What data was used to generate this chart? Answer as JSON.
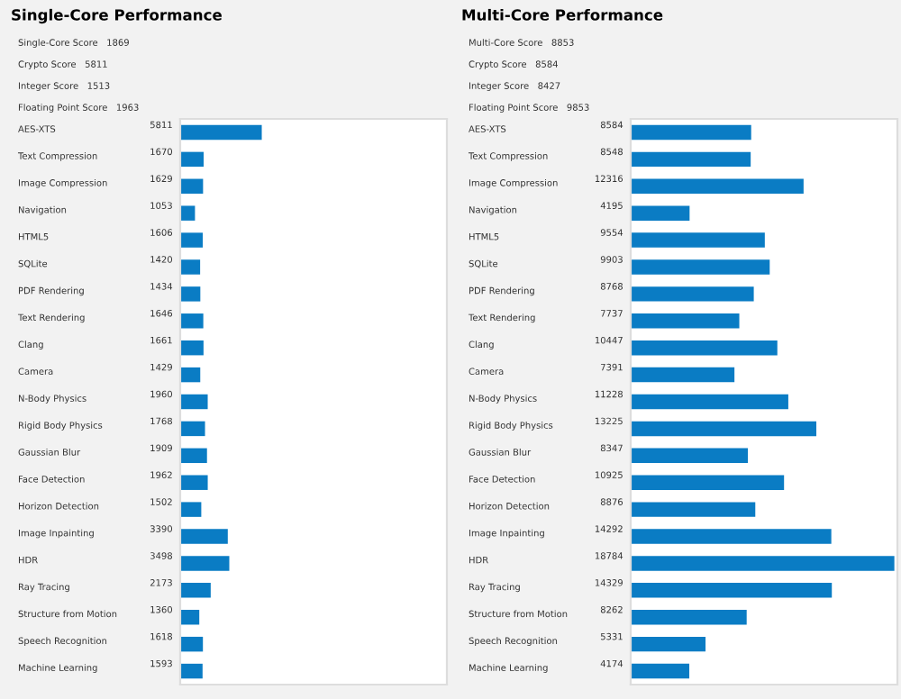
{
  "chart_data": [
    {
      "type": "bar",
      "orientation": "horizontal",
      "title": "Single-Core Performance",
      "annotations": [
        "Single-Core Score   1869",
        "Crypto Score   5811",
        "Integer Score   1513",
        "Floating Point Score   1963"
      ],
      "categories": [
        "AES-XTS",
        "Text Compression",
        "Image Compression",
        "Navigation",
        "HTML5",
        "SQLite",
        "PDF Rendering",
        "Text Rendering",
        "Clang",
        "Camera",
        "N-Body Physics",
        "Rigid Body Physics",
        "Gaussian Blur",
        "Face Detection",
        "Horizon Detection",
        "Image Inpainting",
        "HDR",
        "Ray Tracing",
        "Structure from Motion",
        "Speech Recognition",
        "Machine Learning"
      ],
      "values": [
        5811,
        1670,
        1629,
        1053,
        1606,
        1420,
        1434,
        1646,
        1661,
        1429,
        1960,
        1768,
        1909,
        1962,
        1502,
        3390,
        3498,
        2173,
        1360,
        1618,
        1593
      ],
      "color": "#0a7cc4",
      "xlim": [
        0,
        19000
      ],
      "tick_labels": "y",
      "data_labels": true,
      "grid": false,
      "legend": false
    },
    {
      "type": "bar",
      "orientation": "horizontal",
      "title": "Multi-Core Performance",
      "annotations": [
        "Multi-Core Score   8853",
        "Crypto Score   8584",
        "Integer Score   8427",
        "Floating Point Score   9853"
      ],
      "categories": [
        "AES-XTS",
        "Text Compression",
        "Image Compression",
        "Navigation",
        "HTML5",
        "SQLite",
        "PDF Rendering",
        "Text Rendering",
        "Clang",
        "Camera",
        "N-Body Physics",
        "Rigid Body Physics",
        "Gaussian Blur",
        "Face Detection",
        "Horizon Detection",
        "Image Inpainting",
        "HDR",
        "Ray Tracing",
        "Structure from Motion",
        "Speech Recognition",
        "Machine Learning"
      ],
      "values": [
        8584,
        8548,
        12316,
        4195,
        9554,
        9903,
        8768,
        7737,
        10447,
        7391,
        11228,
        13225,
        8347,
        10925,
        8876,
        14292,
        18784,
        14329,
        8262,
        5331,
        4174
      ],
      "color": "#0a7cc4",
      "xlim": [
        0,
        19000
      ],
      "tick_labels": "y",
      "data_labels": true,
      "grid": false,
      "legend": false
    }
  ]
}
